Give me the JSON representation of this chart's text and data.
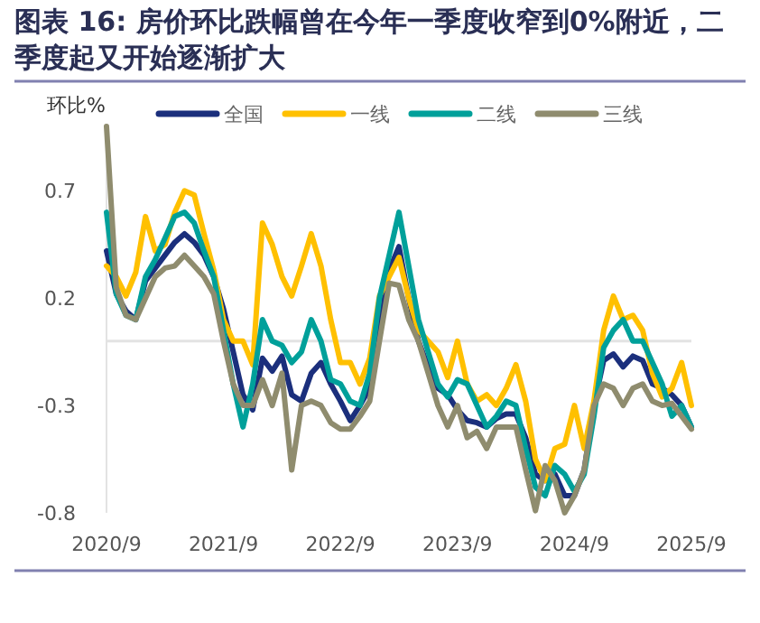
{
  "chart_data": {
    "type": "line",
    "title": "图表 16: 房价环比跌幅曾在今年一季度收窄到0%附近，二季度起又开始逐渐扩大",
    "ylabel": "环比%",
    "legend": "top",
    "x": [
      "2020-09",
      "2020-10",
      "2020-11",
      "2020-12",
      "2021-01",
      "2021-02",
      "2021-03",
      "2021-04",
      "2021-05",
      "2021-06",
      "2021-07",
      "2021-08",
      "2021-09",
      "2021-10",
      "2021-11",
      "2021-12",
      "2022-01",
      "2022-02",
      "2022-03",
      "2022-04",
      "2022-05",
      "2022-06",
      "2022-07",
      "2022-08",
      "2022-09",
      "2022-10",
      "2022-11",
      "2022-12",
      "2023-01",
      "2023-02",
      "2023-03",
      "2023-04",
      "2023-05",
      "2023-06",
      "2023-07",
      "2023-08",
      "2023-09",
      "2023-10",
      "2023-11",
      "2023-12",
      "2024-01",
      "2024-02",
      "2024-03",
      "2024-04",
      "2024-05",
      "2024-06",
      "2024-07",
      "2024-08",
      "2024-09",
      "2024-10",
      "2024-11",
      "2024-12",
      "2025-01",
      "2025-02",
      "2025-03",
      "2025-04",
      "2025-05",
      "2025-06",
      "2025-07",
      "2025-08",
      "2025-09"
    ],
    "xlim": [
      "2020-09",
      "2025-09"
    ],
    "xticks": [
      {
        "value": "2020-09",
        "label": "2020/9"
      },
      {
        "value": "2021-09",
        "label": "2021/9"
      },
      {
        "value": "2022-09",
        "label": "2022/9"
      },
      {
        "value": "2023-09",
        "label": "2023/9"
      },
      {
        "value": "2024-09",
        "label": "2024/9"
      },
      {
        "value": "2025-09",
        "label": "2025/9"
      }
    ],
    "ylim": [
      -0.8,
      1.0
    ],
    "yticks": [
      {
        "value": -0.8,
        "label": "-0.8"
      },
      {
        "value": -0.3,
        "label": "-0.3"
      },
      {
        "value": 0.2,
        "label": "0.2"
      },
      {
        "value": 0.7,
        "label": "0.7"
      }
    ],
    "ref_lines": [
      {
        "axis": "y",
        "value": 0,
        "color": "#e3e3e3"
      }
    ],
    "line_style": "solid",
    "series": [
      {
        "name": "全国",
        "color": "#1b2f7c",
        "values": [
          0.42,
          0.22,
          0.14,
          0.1,
          0.28,
          0.34,
          0.4,
          0.46,
          0.5,
          0.46,
          0.4,
          0.3,
          0.15,
          -0.05,
          -0.25,
          -0.32,
          -0.08,
          -0.14,
          -0.07,
          -0.25,
          -0.28,
          -0.15,
          -0.1,
          -0.2,
          -0.28,
          -0.37,
          -0.3,
          -0.22,
          0.1,
          0.33,
          0.44,
          0.2,
          0.0,
          -0.12,
          -0.22,
          -0.25,
          -0.32,
          -0.37,
          -0.38,
          -0.4,
          -0.36,
          -0.34,
          -0.34,
          -0.45,
          -0.62,
          -0.65,
          -0.62,
          -0.72,
          -0.72,
          -0.6,
          -0.3,
          -0.09,
          -0.06,
          -0.12,
          -0.07,
          -0.09,
          -0.2,
          -0.22,
          -0.25,
          -0.3,
          -0.4
        ]
      },
      {
        "name": "一线",
        "color": "#ffc000",
        "values": [
          0.35,
          0.3,
          0.21,
          0.32,
          0.58,
          0.42,
          0.45,
          0.6,
          0.7,
          0.68,
          0.5,
          0.33,
          0.1,
          0.0,
          0.0,
          -0.11,
          0.55,
          0.45,
          0.3,
          0.21,
          0.35,
          0.5,
          0.35,
          0.1,
          -0.1,
          -0.1,
          -0.2,
          -0.08,
          0.21,
          0.3,
          0.39,
          0.2,
          0.05,
          0.0,
          -0.05,
          -0.17,
          0.0,
          -0.2,
          -0.28,
          -0.25,
          -0.3,
          -0.22,
          -0.11,
          -0.28,
          -0.55,
          -0.65,
          -0.5,
          -0.48,
          -0.3,
          -0.5,
          -0.28,
          0.05,
          0.21,
          0.1,
          0.12,
          0.05,
          -0.15,
          -0.26,
          -0.22,
          -0.1,
          -0.3
        ]
      },
      {
        "name": "二线",
        "color": "#00a09a",
        "values": [
          0.6,
          0.22,
          0.12,
          0.1,
          0.3,
          0.38,
          0.48,
          0.58,
          0.6,
          0.55,
          0.42,
          0.3,
          0.05,
          -0.2,
          -0.4,
          -0.2,
          0.1,
          0.0,
          -0.02,
          -0.1,
          -0.05,
          0.1,
          0.0,
          -0.18,
          -0.2,
          -0.28,
          -0.3,
          -0.15,
          0.2,
          0.4,
          0.6,
          0.35,
          0.1,
          -0.05,
          -0.2,
          -0.26,
          -0.18,
          -0.2,
          -0.3,
          -0.4,
          -0.35,
          -0.28,
          -0.3,
          -0.5,
          -0.68,
          -0.72,
          -0.58,
          -0.62,
          -0.7,
          -0.62,
          -0.35,
          -0.03,
          0.05,
          0.1,
          0.0,
          0.0,
          -0.1,
          -0.2,
          -0.35,
          -0.3,
          -0.4
        ]
      },
      {
        "name": "三线",
        "color": "#8f8c6e",
        "values": [
          1.0,
          0.25,
          0.12,
          0.1,
          0.2,
          0.3,
          0.34,
          0.35,
          0.4,
          0.35,
          0.3,
          0.22,
          0.0,
          -0.2,
          -0.3,
          -0.3,
          -0.18,
          -0.3,
          -0.15,
          -0.6,
          -0.3,
          -0.28,
          -0.3,
          -0.38,
          -0.41,
          -0.41,
          -0.35,
          -0.28,
          0.0,
          0.27,
          0.26,
          0.1,
          0.0,
          -0.15,
          -0.3,
          -0.4,
          -0.3,
          -0.45,
          -0.42,
          -0.5,
          -0.4,
          -0.4,
          -0.4,
          -0.6,
          -0.79,
          -0.58,
          -0.65,
          -0.8,
          -0.72,
          -0.6,
          -0.3,
          -0.2,
          -0.22,
          -0.3,
          -0.22,
          -0.2,
          -0.28,
          -0.3,
          -0.29,
          -0.35,
          -0.41
        ]
      }
    ]
  }
}
